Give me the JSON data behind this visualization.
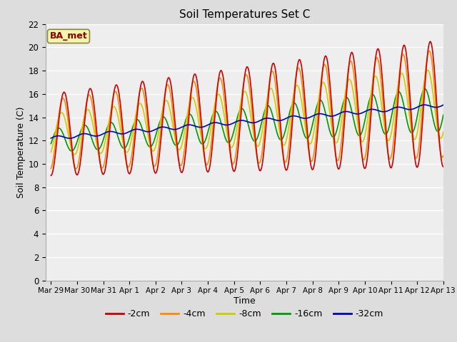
{
  "title": "Soil Temperatures Set C",
  "xlabel": "Time",
  "ylabel": "Soil Temperature (C)",
  "ylim": [
    0,
    22
  ],
  "yticks": [
    0,
    2,
    4,
    6,
    8,
    10,
    12,
    14,
    16,
    18,
    20,
    22
  ],
  "x_tick_labels": [
    "Mar 29",
    "Mar 30",
    "Mar 31",
    "Apr 1",
    "Apr 2",
    "Apr 3",
    "Apr 4",
    "Apr 5",
    "Apr 6",
    "Apr 7",
    "Apr 8",
    "Apr 9",
    "Apr 10",
    "Apr 11",
    "Apr 12",
    "Apr 13"
  ],
  "legend_label": "BA_met",
  "series_labels": [
    "-2cm",
    "-4cm",
    "-8cm",
    "-16cm",
    "-32cm"
  ],
  "series_colors": [
    "#cc0000",
    "#ff8800",
    "#cccc00",
    "#009900",
    "#0000cc"
  ],
  "background_color": "#dddddd",
  "plot_bg_color": "#eeeeee",
  "linewidth": 1.2,
  "figwidth": 6.4,
  "figheight": 4.8,
  "dpi": 100
}
